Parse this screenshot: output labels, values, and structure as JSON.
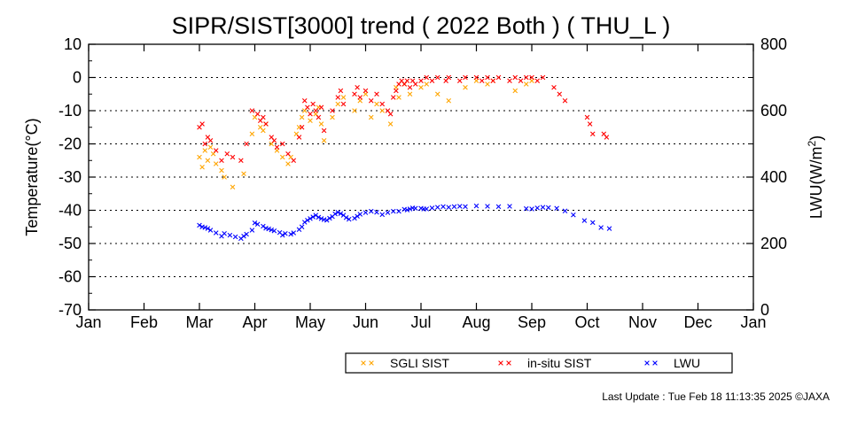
{
  "chart_data": {
    "type": "scatter",
    "title": "SIPR/SIST[3000] trend ( 2022 Both ) ( THU_L )",
    "ylabel_left": "Temperature(°C)",
    "ylabel_right_main": "LWU(W/m",
    "ylabel_right_sup": "2",
    "ylabel_right_close": ")",
    "ylim_left": [
      -70,
      10
    ],
    "ylim_right": [
      0,
      800
    ],
    "y_left_ticks": [
      "10",
      "0",
      "-10",
      "-20",
      "-30",
      "-40",
      "-50",
      "-60",
      "-70"
    ],
    "y_right_ticks": [
      "800",
      "600",
      "400",
      "200",
      "0"
    ],
    "x_ticks": [
      "Jan",
      "Feb",
      "Mar",
      "Apr",
      "May",
      "Jun",
      "Jul",
      "Aug",
      "Sep",
      "Oct",
      "Nov",
      "Dec",
      "Jan"
    ],
    "xlim_months": [
      0,
      12
    ],
    "grid": "horizontal dotted",
    "legend_position": "bottom-right",
    "series": [
      {
        "name": "SGLI SIST",
        "color": "#ffa500",
        "axis": "left",
        "points": [
          [
            2.0,
            -24
          ],
          [
            2.05,
            -27
          ],
          [
            2.1,
            -22
          ],
          [
            2.15,
            -25
          ],
          [
            2.2,
            -21
          ],
          [
            2.25,
            -23
          ],
          [
            2.3,
            -26
          ],
          [
            2.4,
            -28
          ],
          [
            2.45,
            -30
          ],
          [
            2.6,
            -33
          ],
          [
            2.8,
            -29
          ],
          [
            2.95,
            -17
          ],
          [
            3.0,
            -12
          ],
          [
            3.1,
            -15
          ],
          [
            3.15,
            -16
          ],
          [
            3.2,
            -14
          ],
          [
            3.3,
            -20
          ],
          [
            3.4,
            -22
          ],
          [
            3.5,
            -24
          ],
          [
            3.6,
            -26
          ],
          [
            3.65,
            -24
          ],
          [
            3.75,
            -17
          ],
          [
            3.8,
            -15
          ],
          [
            3.85,
            -12
          ],
          [
            3.9,
            -10
          ],
          [
            4.0,
            -13
          ],
          [
            4.1,
            -11
          ],
          [
            4.15,
            -9
          ],
          [
            4.2,
            -14
          ],
          [
            4.25,
            -19
          ],
          [
            4.4,
            -12
          ],
          [
            4.5,
            -8
          ],
          [
            4.6,
            -6
          ],
          [
            4.8,
            -10
          ],
          [
            4.9,
            -7
          ],
          [
            5.0,
            -5
          ],
          [
            5.1,
            -12
          ],
          [
            5.2,
            -8
          ],
          [
            5.3,
            -10
          ],
          [
            5.45,
            -14
          ],
          [
            5.55,
            -3
          ],
          [
            5.6,
            -6
          ],
          [
            5.7,
            -2
          ],
          [
            5.8,
            -5
          ],
          [
            6.0,
            -3
          ],
          [
            6.1,
            -2
          ],
          [
            6.3,
            -5
          ],
          [
            6.5,
            -7
          ],
          [
            6.8,
            -3
          ],
          [
            7.0,
            -1
          ],
          [
            7.2,
            -2
          ],
          [
            7.3,
            -1
          ],
          [
            7.7,
            -4
          ],
          [
            7.9,
            -2
          ],
          [
            8.0,
            -1
          ]
        ]
      },
      {
        "name": "in-situ SIST",
        "color": "#ff0000",
        "axis": "left",
        "points": [
          [
            2.0,
            -15
          ],
          [
            2.05,
            -14
          ],
          [
            2.1,
            -20
          ],
          [
            2.15,
            -18
          ],
          [
            2.2,
            -19
          ],
          [
            2.3,
            -22
          ],
          [
            2.4,
            -25
          ],
          [
            2.5,
            -23
          ],
          [
            2.6,
            -24
          ],
          [
            2.75,
            -25
          ],
          [
            2.85,
            -20
          ],
          [
            2.95,
            -10
          ],
          [
            3.05,
            -11
          ],
          [
            3.1,
            -13
          ],
          [
            3.15,
            -12
          ],
          [
            3.2,
            -14
          ],
          [
            3.3,
            -18
          ],
          [
            3.35,
            -19
          ],
          [
            3.4,
            -21
          ],
          [
            3.5,
            -20
          ],
          [
            3.6,
            -23
          ],
          [
            3.7,
            -25
          ],
          [
            3.8,
            -18
          ],
          [
            3.85,
            -15
          ],
          [
            3.9,
            -7
          ],
          [
            3.95,
            -9
          ],
          [
            4.0,
            -11
          ],
          [
            4.05,
            -8
          ],
          [
            4.1,
            -10
          ],
          [
            4.15,
            -12
          ],
          [
            4.2,
            -9
          ],
          [
            4.25,
            -16
          ],
          [
            4.4,
            -10
          ],
          [
            4.5,
            -6
          ],
          [
            4.55,
            -4
          ],
          [
            4.6,
            -8
          ],
          [
            4.8,
            -5
          ],
          [
            4.85,
            -3
          ],
          [
            4.9,
            -6
          ],
          [
            5.0,
            -4
          ],
          [
            5.1,
            -7
          ],
          [
            5.2,
            -5
          ],
          [
            5.3,
            -8
          ],
          [
            5.4,
            -10
          ],
          [
            5.45,
            -11
          ],
          [
            5.5,
            -6
          ],
          [
            5.55,
            -4
          ],
          [
            5.6,
            -2
          ],
          [
            5.65,
            -1
          ],
          [
            5.7,
            -2
          ],
          [
            5.75,
            -1
          ],
          [
            5.8,
            -3
          ],
          [
            5.85,
            -1
          ],
          [
            5.9,
            -2
          ],
          [
            6.0,
            -1
          ],
          [
            6.1,
            0
          ],
          [
            6.2,
            -1
          ],
          [
            6.3,
            0
          ],
          [
            6.45,
            -1
          ],
          [
            6.5,
            0
          ],
          [
            6.7,
            -1
          ],
          [
            6.8,
            0
          ],
          [
            7.0,
            0
          ],
          [
            7.1,
            -1
          ],
          [
            7.2,
            0
          ],
          [
            7.3,
            -1
          ],
          [
            7.4,
            0
          ],
          [
            7.6,
            -1
          ],
          [
            7.7,
            0
          ],
          [
            7.8,
            -1
          ],
          [
            7.9,
            0
          ],
          [
            8.0,
            0
          ],
          [
            8.1,
            -1
          ],
          [
            8.2,
            0
          ],
          [
            8.4,
            -3
          ],
          [
            8.5,
            -5
          ],
          [
            8.6,
            -7
          ],
          [
            9.0,
            -12
          ],
          [
            9.05,
            -14
          ],
          [
            9.1,
            -17
          ],
          [
            9.3,
            -17
          ],
          [
            9.35,
            -18
          ]
        ]
      },
      {
        "name": "LWU",
        "color": "#0000ff",
        "axis": "right",
        "points": [
          [
            2.0,
            255
          ],
          [
            2.05,
            250
          ],
          [
            2.1,
            248
          ],
          [
            2.15,
            245
          ],
          [
            2.2,
            240
          ],
          [
            2.3,
            232
          ],
          [
            2.4,
            222
          ],
          [
            2.45,
            230
          ],
          [
            2.55,
            225
          ],
          [
            2.65,
            220
          ],
          [
            2.75,
            215
          ],
          [
            2.8,
            222
          ],
          [
            2.85,
            228
          ],
          [
            2.95,
            240
          ],
          [
            3.0,
            262
          ],
          [
            3.05,
            258
          ],
          [
            3.15,
            252
          ],
          [
            3.2,
            246
          ],
          [
            3.25,
            244
          ],
          [
            3.3,
            241
          ],
          [
            3.35,
            238
          ],
          [
            3.45,
            233
          ],
          [
            3.5,
            225
          ],
          [
            3.55,
            230
          ],
          [
            3.65,
            228
          ],
          [
            3.7,
            232
          ],
          [
            3.8,
            242
          ],
          [
            3.85,
            250
          ],
          [
            3.9,
            264
          ],
          [
            3.95,
            270
          ],
          [
            4.0,
            275
          ],
          [
            4.05,
            280
          ],
          [
            4.1,
            285
          ],
          [
            4.15,
            279
          ],
          [
            4.2,
            275
          ],
          [
            4.25,
            272
          ],
          [
            4.3,
            270
          ],
          [
            4.35,
            276
          ],
          [
            4.4,
            281
          ],
          [
            4.45,
            289
          ],
          [
            4.5,
            294
          ],
          [
            4.55,
            290
          ],
          [
            4.6,
            285
          ],
          [
            4.65,
            278
          ],
          [
            4.7,
            273
          ],
          [
            4.8,
            276
          ],
          [
            4.85,
            282
          ],
          [
            4.9,
            288
          ],
          [
            5.0,
            293
          ],
          [
            5.1,
            297
          ],
          [
            5.2,
            294
          ],
          [
            5.3,
            287
          ],
          [
            5.4,
            293
          ],
          [
            5.5,
            297
          ],
          [
            5.6,
            297
          ],
          [
            5.7,
            303
          ],
          [
            5.75,
            301
          ],
          [
            5.8,
            304
          ],
          [
            5.85,
            307
          ],
          [
            5.9,
            306
          ],
          [
            6.0,
            306
          ],
          [
            6.05,
            304
          ],
          [
            6.1,
            304
          ],
          [
            6.2,
            307
          ],
          [
            6.3,
            309
          ],
          [
            6.4,
            311
          ],
          [
            6.5,
            309
          ],
          [
            6.6,
            311
          ],
          [
            6.7,
            312
          ],
          [
            6.8,
            311
          ],
          [
            7.0,
            313
          ],
          [
            7.2,
            312
          ],
          [
            7.4,
            311
          ],
          [
            7.6,
            312
          ],
          [
            7.9,
            305
          ],
          [
            8.0,
            304
          ],
          [
            8.1,
            307
          ],
          [
            8.2,
            309
          ],
          [
            8.3,
            308
          ],
          [
            8.45,
            306
          ],
          [
            8.6,
            298
          ],
          [
            8.75,
            286
          ],
          [
            8.95,
            269
          ],
          [
            9.1,
            263
          ],
          [
            9.25,
            248
          ],
          [
            9.4,
            245
          ]
        ]
      }
    ]
  },
  "legend": {
    "items": [
      {
        "label": "SGLI SIST",
        "color": "#ffa500"
      },
      {
        "label": "in-situ SIST",
        "color": "#ff0000"
      },
      {
        "label": "LWU",
        "color": "#0000ff"
      }
    ]
  },
  "footer": {
    "last_update": "Last Update : Tue Feb 18 11:13:35 2025  ©JAXA"
  }
}
